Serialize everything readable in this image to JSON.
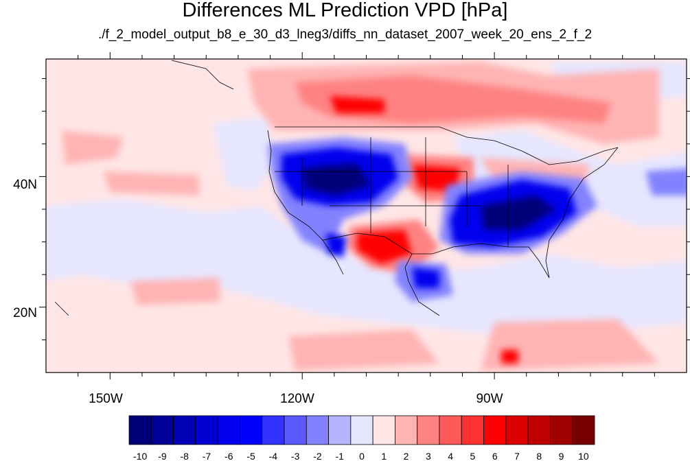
{
  "title": "Differences ML Prediction VPD [hPa]",
  "subtitle": "./f_2_model_output_b8_e_30_d3_lneg3/diffs_nn_dataset_2007_week_20_ens_2_f_2",
  "map": {
    "projection": "cylindrical-equidistant",
    "lon_range": [
      -160,
      -60
    ],
    "lat_range": [
      10,
      58
    ],
    "x_tick_labels": [
      "150W",
      "120W",
      "90W"
    ],
    "y_tick_labels": [
      "40N",
      "20N"
    ]
  },
  "colorbar": {
    "labels": [
      "-10",
      "-9",
      "-8",
      "-7",
      "-6",
      "-5",
      "-4",
      "-3",
      "-2",
      "-1",
      "0",
      "1",
      "2",
      "3",
      "4",
      "5",
      "6",
      "7",
      "8",
      "9",
      "10"
    ],
    "colors": [
      "#00007a",
      "#000096",
      "#0000b4",
      "#0000d2",
      "#0000ee",
      "#0000ff",
      "#3232ff",
      "#5a5aff",
      "#8282ff",
      "#b4b4ff",
      "#e6e6ff",
      "#ffe6e6",
      "#ffb4b4",
      "#ff8282",
      "#ff5a5a",
      "#ff3232",
      "#ff0000",
      "#dc0000",
      "#be0000",
      "#a00000",
      "#780000"
    ]
  }
}
